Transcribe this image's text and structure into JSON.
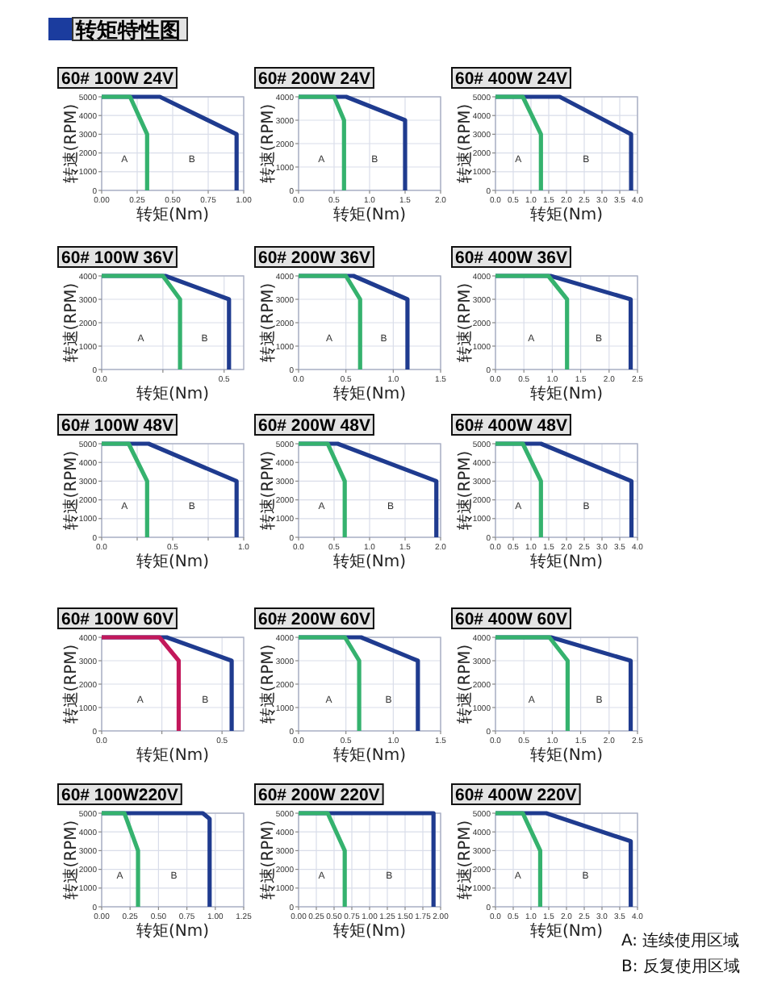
{
  "chart_data": [
    {
      "type": "other",
      "title": "转矩特性图"
    },
    {
      "type": "line",
      "title": "60# 100W 24V",
      "xlabel": "转矩(Nm)",
      "ylabel": "转速(RPM)",
      "xlim": [
        0,
        1
      ],
      "xticks": [
        {
          "value": 0,
          "label": "0.00"
        },
        0.25,
        {
          "value": 0.5,
          "label": "0.50"
        },
        0.75,
        {
          "value": 1,
          "label": "1.00"
        }
      ],
      "ylim": [
        0,
        5000
      ],
      "yticks": [
        0,
        1000,
        2000,
        3000,
        4000,
        5000
      ],
      "grid": true,
      "series": [
        {
          "color": "#1f3b8f",
          "x": [
            0,
            0.41,
            0.95,
            0.95
          ],
          "values": [
            5000,
            5000,
            3000,
            0
          ]
        },
        {
          "color": "#35b26e",
          "x": [
            0,
            0.2,
            0.32,
            0.32
          ],
          "values": [
            5000,
            5000,
            3000,
            0
          ]
        }
      ],
      "annotations": [
        "A",
        "B"
      ]
    },
    {
      "type": "line",
      "title": "60# 200W 24V",
      "xlabel": "转矩(Nm)",
      "ylabel": "转速(RPM)",
      "xlim": [
        0,
        2
      ],
      "xticks": [
        {
          "value": 0,
          "label": "0.0"
        },
        0.5,
        {
          "value": 1,
          "label": "1.0"
        },
        1.5,
        {
          "value": 2,
          "label": "2.0"
        }
      ],
      "ylim": [
        0,
        4000
      ],
      "yticks": [
        0,
        1000,
        2000,
        3000,
        4000
      ],
      "grid": true,
      "series": [
        {
          "color": "#1f3b8f",
          "x": [
            0,
            0.67,
            1.5,
            1.5
          ],
          "values": [
            4000,
            4000,
            3000,
            0
          ]
        },
        {
          "color": "#35b26e",
          "x": [
            0,
            0.5,
            0.64,
            0.64
          ],
          "values": [
            4000,
            4000,
            3000,
            0
          ]
        }
      ],
      "annotations": [
        "A",
        "B"
      ]
    },
    {
      "type": "line",
      "title": "60# 400W 24V",
      "xlabel": "转矩(Nm)",
      "ylabel": "转速(RPM)",
      "xlim": [
        0,
        4
      ],
      "xticks": [
        {
          "value": 0,
          "label": "0.0"
        },
        0.5,
        {
          "value": 1,
          "label": "1.0"
        },
        1.5,
        {
          "value": 2,
          "label": "2.0"
        },
        2.5,
        {
          "value": 3,
          "label": "3.0"
        },
        3.5,
        {
          "value": 4,
          "label": "4.0"
        }
      ],
      "ylim": [
        0,
        5000
      ],
      "yticks": [
        0,
        1000,
        2000,
        3000,
        4000,
        5000
      ],
      "grid": true,
      "series": [
        {
          "color": "#1f3b8f",
          "x": [
            0,
            1.81,
            3.82,
            3.82
          ],
          "values": [
            5000,
            5000,
            3000,
            0
          ]
        },
        {
          "color": "#35b26e",
          "x": [
            0,
            0.77,
            1.28,
            1.28
          ],
          "values": [
            5000,
            5000,
            3000,
            0
          ]
        }
      ],
      "annotations": [
        "A",
        "B"
      ]
    },
    {
      "type": "line",
      "title": "60# 100W 36V",
      "xlabel": "转矩(Nm)",
      "ylabel": "转速(RPM)",
      "xlim": [
        0,
        0.58
      ],
      "xticks": [
        {
          "value": 0,
          "label": "0.0"
        },
        {
          "value": 0.25,
          "label": null
        },
        0.5
      ],
      "ylim": [
        0,
        4000
      ],
      "yticks": [
        0,
        1000,
        2000,
        3000,
        4000
      ],
      "grid": true,
      "series": [
        {
          "color": "#1f3b8f",
          "x": [
            0,
            0.26,
            0.52,
            0.52
          ],
          "values": [
            4000,
            4000,
            3000,
            0
          ]
        },
        {
          "color": "#35b26e",
          "x": [
            0,
            0.25,
            0.32,
            0.32
          ],
          "values": [
            4000,
            4000,
            3000,
            0
          ]
        }
      ],
      "annotations": [
        "A",
        "B"
      ]
    },
    {
      "type": "line",
      "title": "60# 200W 36V",
      "xlabel": "转矩(Nm)",
      "ylabel": "转速(RPM)",
      "xlim": [
        0,
        1.5
      ],
      "xticks": [
        {
          "value": 0,
          "label": "0.0"
        },
        0.5,
        {
          "value": 1,
          "label": "1.0"
        },
        1.5
      ],
      "ylim": [
        0,
        4000
      ],
      "yticks": [
        0,
        1000,
        2000,
        3000,
        4000
      ],
      "grid": true,
      "series": [
        {
          "color": "#1f3b8f",
          "x": [
            0,
            0.58,
            1.15,
            1.15
          ],
          "values": [
            4000,
            4000,
            3000,
            0
          ]
        },
        {
          "color": "#35b26e",
          "x": [
            0,
            0.5,
            0.65,
            0.65
          ],
          "values": [
            4000,
            4000,
            3000,
            0
          ]
        }
      ],
      "annotations": [
        "A",
        "B"
      ]
    },
    {
      "type": "line",
      "title": "60# 400W 36V",
      "xlabel": "转矩(Nm)",
      "ylabel": "转速(RPM)",
      "xlim": [
        0,
        2.5
      ],
      "xticks": [
        {
          "value": 0,
          "label": "0.0"
        },
        0.5,
        {
          "value": 1,
          "label": "1.0"
        },
        1.5,
        {
          "value": 2,
          "label": "2.0"
        },
        2.5
      ],
      "ylim": [
        0,
        4000
      ],
      "yticks": [
        0,
        1000,
        2000,
        3000,
        4000
      ],
      "grid": true,
      "series": [
        {
          "color": "#1f3b8f",
          "x": [
            0,
            0.97,
            2.38,
            2.38
          ],
          "values": [
            4000,
            4000,
            3000,
            0
          ]
        },
        {
          "color": "#35b26e",
          "x": [
            0,
            0.93,
            1.26,
            1.26
          ],
          "values": [
            4000,
            4000,
            3000,
            0
          ]
        }
      ],
      "annotations": [
        "A",
        "B"
      ]
    },
    {
      "type": "line",
      "title": "60# 100W 48V",
      "xlabel": "转矩(Nm)",
      "ylabel": "转速(RPM)",
      "xlim": [
        0,
        1
      ],
      "xticks": [
        {
          "value": 0,
          "label": "0.0"
        },
        {
          "value": 0.25,
          "label": null
        },
        0.5,
        {
          "value": 0.75,
          "label": null
        },
        {
          "value": 1,
          "label": "1.0"
        }
      ],
      "ylim": [
        0,
        5000
      ],
      "yticks": [
        0,
        1000,
        2000,
        3000,
        4000,
        5000
      ],
      "grid": true,
      "series": [
        {
          "color": "#1f3b8f",
          "x": [
            0,
            0.33,
            0.95,
            0.95
          ],
          "values": [
            5000,
            5000,
            3000,
            0
          ]
        },
        {
          "color": "#35b26e",
          "x": [
            0,
            0.19,
            0.32,
            0.32
          ],
          "values": [
            5000,
            5000,
            3000,
            0
          ]
        }
      ],
      "annotations": [
        "A",
        "B"
      ]
    },
    {
      "type": "line",
      "title": "60# 200W 48V",
      "xlabel": "转矩(Nm)",
      "ylabel": "转速(RPM)",
      "xlim": [
        0,
        2
      ],
      "xticks": [
        {
          "value": 0,
          "label": "0.0"
        },
        0.5,
        {
          "value": 1,
          "label": "1.0"
        },
        1.5,
        {
          "value": 2,
          "label": "2.0"
        }
      ],
      "ylim": [
        0,
        5000
      ],
      "yticks": [
        0,
        1000,
        2000,
        3000,
        4000,
        5000
      ],
      "grid": true,
      "series": [
        {
          "color": "#1f3b8f",
          "x": [
            0,
            0.55,
            1.94,
            1.94
          ],
          "values": [
            5000,
            5000,
            3000,
            0
          ]
        },
        {
          "color": "#35b26e",
          "x": [
            0,
            0.41,
            0.65,
            0.65
          ],
          "values": [
            5000,
            5000,
            3000,
            0
          ]
        }
      ],
      "annotations": [
        "A",
        "B"
      ]
    },
    {
      "type": "line",
      "title": "60# 400W 48V",
      "xlabel": "转矩(Nm)",
      "ylabel": "转速(RPM)",
      "xlim": [
        0,
        4
      ],
      "xticks": [
        {
          "value": 0,
          "label": "0.0"
        },
        0.5,
        {
          "value": 1,
          "label": "1.0"
        },
        1.5,
        {
          "value": 2,
          "label": "2.0"
        },
        2.5,
        {
          "value": 3,
          "label": "3.0"
        },
        3.5,
        {
          "value": 4,
          "label": "4.0"
        }
      ],
      "ylim": [
        0,
        5000
      ],
      "yticks": [
        0,
        1000,
        2000,
        3000,
        4000,
        5000
      ],
      "grid": true,
      "series": [
        {
          "color": "#1f3b8f",
          "x": [
            0,
            1.28,
            3.83,
            3.83
          ],
          "values": [
            5000,
            5000,
            3000,
            0
          ]
        },
        {
          "color": "#35b26e",
          "x": [
            0,
            0.77,
            1.28,
            1.28
          ],
          "values": [
            5000,
            5000,
            3000,
            0
          ]
        }
      ],
      "annotations": [
        "A",
        "B"
      ]
    },
    {
      "type": "line",
      "title": "60# 100W 60V",
      "xlabel": "转矩(Nm)",
      "ylabel": "转速(RPM)",
      "xlim": [
        0,
        0.59
      ],
      "xticks": [
        {
          "value": 0,
          "label": "0.0"
        },
        {
          "value": 0.25,
          "label": null
        },
        0.5
      ],
      "ylim": [
        0,
        4000
      ],
      "yticks": [
        0,
        1000,
        2000,
        3000,
        4000
      ],
      "grid": true,
      "series": [
        {
          "color": "#1f3b8f",
          "x": [
            0,
            0.27,
            0.54,
            0.54
          ],
          "values": [
            4000,
            4000,
            3000,
            0
          ]
        },
        {
          "color": "#c2185b",
          "x": [
            0,
            0.24,
            0.32,
            0.32
          ],
          "values": [
            4000,
            4000,
            3000,
            0
          ]
        }
      ],
      "annotations": [
        "A",
        "B"
      ]
    },
    {
      "type": "line",
      "title": "60# 200W 60V",
      "xlabel": "转矩(Nm)",
      "ylabel": "转速(RPM)",
      "xlim": [
        0,
        1.5
      ],
      "xticks": [
        {
          "value": 0,
          "label": "0.0"
        },
        0.5,
        {
          "value": 1,
          "label": "1.0"
        },
        1.5
      ],
      "ylim": [
        0,
        4000
      ],
      "yticks": [
        0,
        1000,
        2000,
        3000,
        4000
      ],
      "grid": true,
      "series": [
        {
          "color": "#1f3b8f",
          "x": [
            0,
            0.66,
            1.26,
            1.26
          ],
          "values": [
            4000,
            4000,
            3000,
            0
          ]
        },
        {
          "color": "#35b26e",
          "x": [
            0,
            0.49,
            0.64,
            0.64
          ],
          "values": [
            4000,
            4000,
            3000,
            0
          ]
        }
      ],
      "annotations": [
        "A",
        "B"
      ]
    },
    {
      "type": "line",
      "title": "60# 400W 60V",
      "xlabel": "转矩(Nm)",
      "ylabel": "转速(RPM)",
      "xlim": [
        0,
        2.5
      ],
      "xticks": [
        {
          "value": 0,
          "label": "0.0"
        },
        0.5,
        {
          "value": 1,
          "label": "1.0"
        },
        1.5,
        {
          "value": 2,
          "label": "2.0"
        },
        2.5
      ],
      "ylim": [
        0,
        4000
      ],
      "yticks": [
        0,
        1000,
        2000,
        3000,
        4000
      ],
      "grid": true,
      "series": [
        {
          "color": "#1f3b8f",
          "x": [
            0,
            0.98,
            2.38,
            2.38
          ],
          "values": [
            4000,
            4000,
            3000,
            0
          ]
        },
        {
          "color": "#35b26e",
          "x": [
            0,
            0.95,
            1.27,
            1.27
          ],
          "values": [
            4000,
            4000,
            3000,
            0
          ]
        }
      ],
      "annotations": [
        "A",
        "B"
      ]
    },
    {
      "type": "line",
      "title": "60# 100W220V",
      "xlabel": "转矩(Nm)",
      "ylabel": "转速(RPM)",
      "xlim": [
        0,
        1.25
      ],
      "xticks": [
        {
          "value": 0,
          "label": "0.00"
        },
        0.25,
        {
          "value": 0.5,
          "label": "0.50"
        },
        0.75,
        {
          "value": 1,
          "label": "1.00"
        },
        1.25
      ],
      "ylim": [
        0,
        5000
      ],
      "yticks": [
        0,
        1000,
        2000,
        3000,
        4000,
        5000
      ],
      "grid": true,
      "series": [
        {
          "color": "#1f3b8f",
          "x": [
            0,
            0.89,
            0.95,
            0.95
          ],
          "values": [
            5000,
            5000,
            4700,
            0
          ]
        },
        {
          "color": "#35b26e",
          "x": [
            0,
            0.2,
            0.32,
            0.32
          ],
          "values": [
            5000,
            5000,
            3000,
            0
          ]
        }
      ],
      "annotations": [
        "A",
        "B"
      ]
    },
    {
      "type": "line",
      "title": "60# 200W 220V",
      "xlabel": "转矩(Nm)",
      "ylabel": "转速(RPM)",
      "xlim": [
        0,
        2
      ],
      "xticks": [
        {
          "value": 0,
          "label": "0.00"
        },
        0.25,
        {
          "value": 0.5,
          "label": "0.50"
        },
        0.75,
        {
          "value": 1,
          "label": "1.00"
        },
        1.25,
        {
          "value": 1.5,
          "label": "1.50"
        },
        1.75,
        {
          "value": 2,
          "label": "2.00"
        }
      ],
      "ylim": [
        0,
        5000
      ],
      "yticks": [
        0,
        1000,
        2000,
        3000,
        4000,
        5000
      ],
      "grid": true,
      "series": [
        {
          "color": "#1f3b8f",
          "x": [
            0,
            1,
            1.9,
            1.9
          ],
          "values": [
            5000,
            5000,
            5000,
            0
          ]
        },
        {
          "color": "#35b26e",
          "x": [
            0,
            0.41,
            0.65,
            0.65
          ],
          "values": [
            5000,
            5000,
            3000,
            0
          ]
        }
      ],
      "annotations": [
        "A",
        "B"
      ]
    },
    {
      "type": "line",
      "title": "60# 400W 220V",
      "xlabel": "转矩(Nm)",
      "ylabel": "转速(RPM)",
      "xlim": [
        0,
        4
      ],
      "xticks": [
        {
          "value": 0,
          "label": "0.0"
        },
        0.5,
        {
          "value": 1,
          "label": "1.0"
        },
        1.5,
        {
          "value": 2,
          "label": "2.0"
        },
        2.5,
        {
          "value": 3,
          "label": "3.0"
        },
        3.5,
        {
          "value": 4,
          "label": "4.0"
        }
      ],
      "ylim": [
        0,
        5000
      ],
      "yticks": [
        0,
        1000,
        2000,
        3000,
        4000,
        5000
      ],
      "grid": true,
      "series": [
        {
          "color": "#1f3b8f",
          "x": [
            0,
            1.43,
            3.81,
            3.81
          ],
          "values": [
            5000,
            5000,
            3500,
            0
          ]
        },
        {
          "color": "#35b26e",
          "x": [
            0,
            0.77,
            1.26,
            1.26
          ],
          "values": [
            5000,
            5000,
            3000,
            0
          ]
        }
      ],
      "annotations": [
        "A",
        "B"
      ]
    },
    {
      "type": "other",
      "annotations": [
        "A: 连续使用区域",
        "B: 反复使用区域"
      ]
    }
  ]
}
